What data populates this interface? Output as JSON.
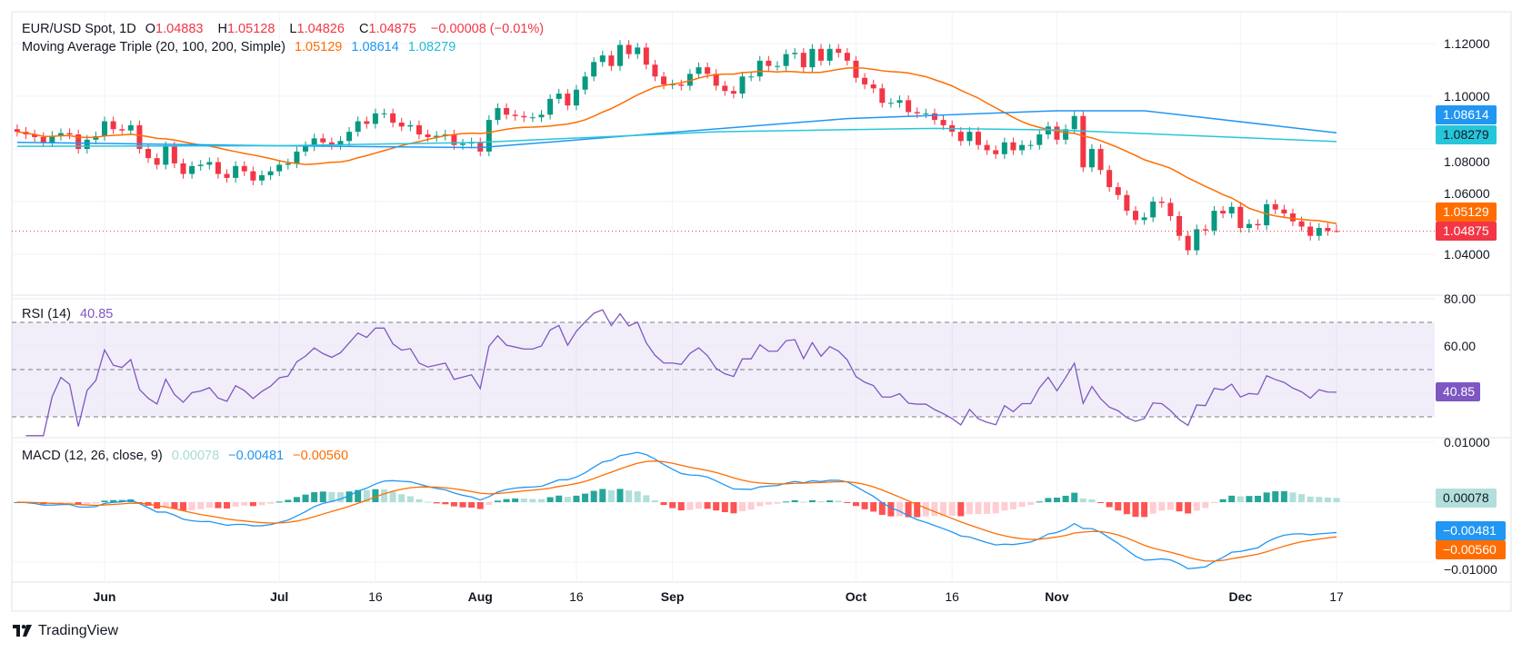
{
  "header": {
    "symbol": "EUR/USD Spot, 1D",
    "o_label": "O",
    "o": "1.04883",
    "h_label": "H",
    "h": "1.05128",
    "l_label": "L",
    "l": "1.04826",
    "c_label": "C",
    "c": "1.04875",
    "change": "−0.00008 (−0.01%)",
    "ma_title": "Moving Average Triple (20, 100, 200, Simple)",
    "ma20": "1.05129",
    "ma100": "1.08614",
    "ma200": "1.08279"
  },
  "rsi": {
    "title": "RSI (14)",
    "value": "40.85",
    "ticks": [
      "80.00",
      "60.00"
    ]
  },
  "macd": {
    "title": "MACD (12, 26, close, 9)",
    "hist": "0.00078",
    "macd": "−0.00481",
    "signal": "−0.00560",
    "ticks": [
      "0.01000",
      "−0.01000"
    ]
  },
  "price_axis": {
    "ticks": [
      "1.12000",
      "1.10000",
      "1.08000",
      "1.06000",
      "1.04000"
    ]
  },
  "badges": {
    "ma100": "1.08614",
    "ma200": "1.08279",
    "ma20": "1.05129",
    "last": "1.04875"
  },
  "time_axis": [
    {
      "label": "Jun",
      "date": "Jun 3",
      "bold": true
    },
    {
      "label": "Jul",
      "date": "Jul 1",
      "bold": true
    },
    {
      "label": "16",
      "date": "Jul 16",
      "bold": false
    },
    {
      "label": "Aug",
      "date": "Aug 1",
      "bold": true
    },
    {
      "label": "16",
      "date": "Aug 16",
      "bold": false
    },
    {
      "label": "Sep",
      "date": "Sep 2",
      "bold": true
    },
    {
      "label": "Oct",
      "date": "Oct 1",
      "bold": true
    },
    {
      "label": "16",
      "date": "Oct 16",
      "bold": false
    },
    {
      "label": "Nov",
      "date": "Nov 1",
      "bold": true
    },
    {
      "label": "Dec",
      "date": "Dec 2",
      "bold": true
    },
    {
      "label": "17",
      "date": "Dec 17",
      "bold": false
    }
  ],
  "brand": "TradingView",
  "colors": {
    "up": "#089981",
    "down": "#F23645",
    "ma20": "#FF6D00",
    "ma100": "#2196F3",
    "ma200": "#26C6DA",
    "rsi": "#7E57C2",
    "macd": "#2196F3",
    "signal": "#FF6D00",
    "hist_up_strong": "#26A69A",
    "hist_up_weak": "#B2DFDB",
    "hist_dn_strong": "#FF5252",
    "hist_dn_weak": "#FFCDD2"
  },
  "chart_data": {
    "type": "candlestick",
    "interval": "1D",
    "price_range": [
      1.032,
      1.125
    ],
    "rsi_range": [
      22,
      82
    ],
    "macd_range": [
      -0.0105,
      0.0108
    ],
    "weeks": [
      {
        "week_of": "May 20",
        "closes": [
          1.0865,
          1.0855,
          1.0845,
          1.0825,
          1.085
        ]
      },
      {
        "week_of": "May 27",
        "closes": [
          1.086,
          1.0855,
          1.08,
          1.0835,
          1.0848
        ]
      },
      {
        "week_of": "Jun 3",
        "closes": [
          1.0905,
          1.0875,
          1.087,
          1.089,
          1.08
        ]
      },
      {
        "week_of": "Jun 10",
        "closes": [
          1.0765,
          1.074,
          1.081,
          1.0745,
          1.0705
        ]
      },
      {
        "week_of": "Jun 17",
        "closes": [
          1.0735,
          1.074,
          1.075,
          1.0705,
          1.069
        ]
      },
      {
        "week_of": "Jun 24",
        "closes": [
          1.0735,
          1.0715,
          1.068,
          1.07,
          1.0715
        ]
      },
      {
        "week_of": "Jul 1",
        "closes": [
          1.074,
          1.0745,
          1.079,
          1.081,
          1.084
        ]
      },
      {
        "week_of": "Jul 8",
        "closes": [
          1.0825,
          1.0815,
          1.083,
          1.0865,
          1.0905
        ]
      },
      {
        "week_of": "Jul 15",
        "closes": [
          1.0895,
          1.0935,
          1.0935,
          1.09,
          1.0885
        ]
      },
      {
        "week_of": "Jul 22",
        "closes": [
          1.089,
          1.0855,
          1.0845,
          1.085,
          1.0855
        ]
      },
      {
        "week_of": "Jul 29",
        "closes": [
          1.0815,
          1.082,
          1.0825,
          1.079,
          1.091
        ]
      },
      {
        "week_of": "Aug 5",
        "closes": [
          1.0955,
          1.093,
          1.0925,
          1.092,
          1.092
        ]
      },
      {
        "week_of": "Aug 12",
        "closes": [
          1.093,
          1.099,
          1.101,
          1.0965,
          1.1025
        ]
      },
      {
        "week_of": "Aug 19",
        "closes": [
          1.1075,
          1.113,
          1.1155,
          1.1115,
          1.1195
        ]
      },
      {
        "week_of": "Aug 26",
        "closes": [
          1.116,
          1.1185,
          1.112,
          1.1075,
          1.1045
        ]
      },
      {
        "week_of": "Sep 2",
        "closes": [
          1.1045,
          1.104,
          1.1085,
          1.111,
          1.1085
        ]
      },
      {
        "week_of": "Sep 9",
        "closes": [
          1.104,
          1.102,
          1.101,
          1.1075,
          1.1075
        ]
      },
      {
        "week_of": "Sep 16",
        "closes": [
          1.1135,
          1.1115,
          1.1115,
          1.116,
          1.1165
        ]
      },
      {
        "week_of": "Sep 23",
        "closes": [
          1.111,
          1.118,
          1.1135,
          1.118,
          1.1165
        ]
      },
      {
        "week_of": "Sep 30",
        "closes": [
          1.1135,
          1.107,
          1.1045,
          1.103,
          1.0975
        ]
      },
      {
        "week_of": "Oct 7",
        "closes": [
          1.0975,
          1.0985,
          1.094,
          1.0935,
          1.0935
        ]
      },
      {
        "week_of": "Oct 14",
        "closes": [
          1.091,
          1.089,
          1.0865,
          1.083,
          1.0865
        ]
      },
      {
        "week_of": "Oct 21",
        "closes": [
          1.0815,
          1.0795,
          1.078,
          1.0825,
          1.0795
        ]
      },
      {
        "week_of": "Oct 28",
        "closes": [
          1.0815,
          1.0815,
          1.0855,
          1.0885,
          1.0835
        ]
      },
      {
        "week_of": "Nov 4",
        "closes": [
          1.0875,
          1.0925,
          1.073,
          1.08,
          1.072
        ]
      },
      {
        "week_of": "Nov 11",
        "closes": [
          1.0655,
          1.0625,
          1.0565,
          1.053,
          1.054
        ]
      },
      {
        "week_of": "Nov 18",
        "closes": [
          1.06,
          1.0595,
          1.0545,
          1.047,
          1.0415
        ]
      },
      {
        "week_of": "Nov 25",
        "closes": [
          1.0495,
          1.049,
          1.0565,
          1.0555,
          1.058
        ]
      },
      {
        "week_of": "Dec 2",
        "closes": [
          1.05,
          1.0515,
          1.051,
          1.059,
          1.057
        ]
      },
      {
        "week_of": "Dec 9",
        "closes": [
          1.0555,
          1.0525,
          1.0505,
          1.047,
          1.05
        ]
      },
      {
        "week_of": "Dec 16",
        "closes": [
          1.04883,
          1.04875
        ]
      }
    ],
    "last_candle": {
      "open": 1.04883,
      "high": 1.05128,
      "low": 1.04826,
      "close": 1.04875
    },
    "ma100_points": [
      [
        "May 20",
        1.0825
      ],
      [
        "Jul 1",
        1.0812
      ],
      [
        "Aug 1",
        1.0805
      ],
      [
        "Aug 26",
        1.085
      ],
      [
        "Sep 30",
        1.0915
      ],
      [
        "Nov 1",
        1.0945
      ],
      [
        "Nov 15",
        1.0945
      ],
      [
        "Dec 17",
        1.08614
      ]
    ],
    "ma200_points": [
      [
        "May 20",
        1.081
      ],
      [
        "Jul 1",
        1.0812
      ],
      [
        "Aug 1",
        1.0825
      ],
      [
        "Sep 9",
        1.0865
      ],
      [
        "Oct 14",
        1.0878
      ],
      [
        "Nov 1",
        1.0872
      ],
      [
        "Dec 17",
        1.08279
      ]
    ],
    "rsi_levels": [
      70,
      50,
      30
    ],
    "grid": true
  }
}
